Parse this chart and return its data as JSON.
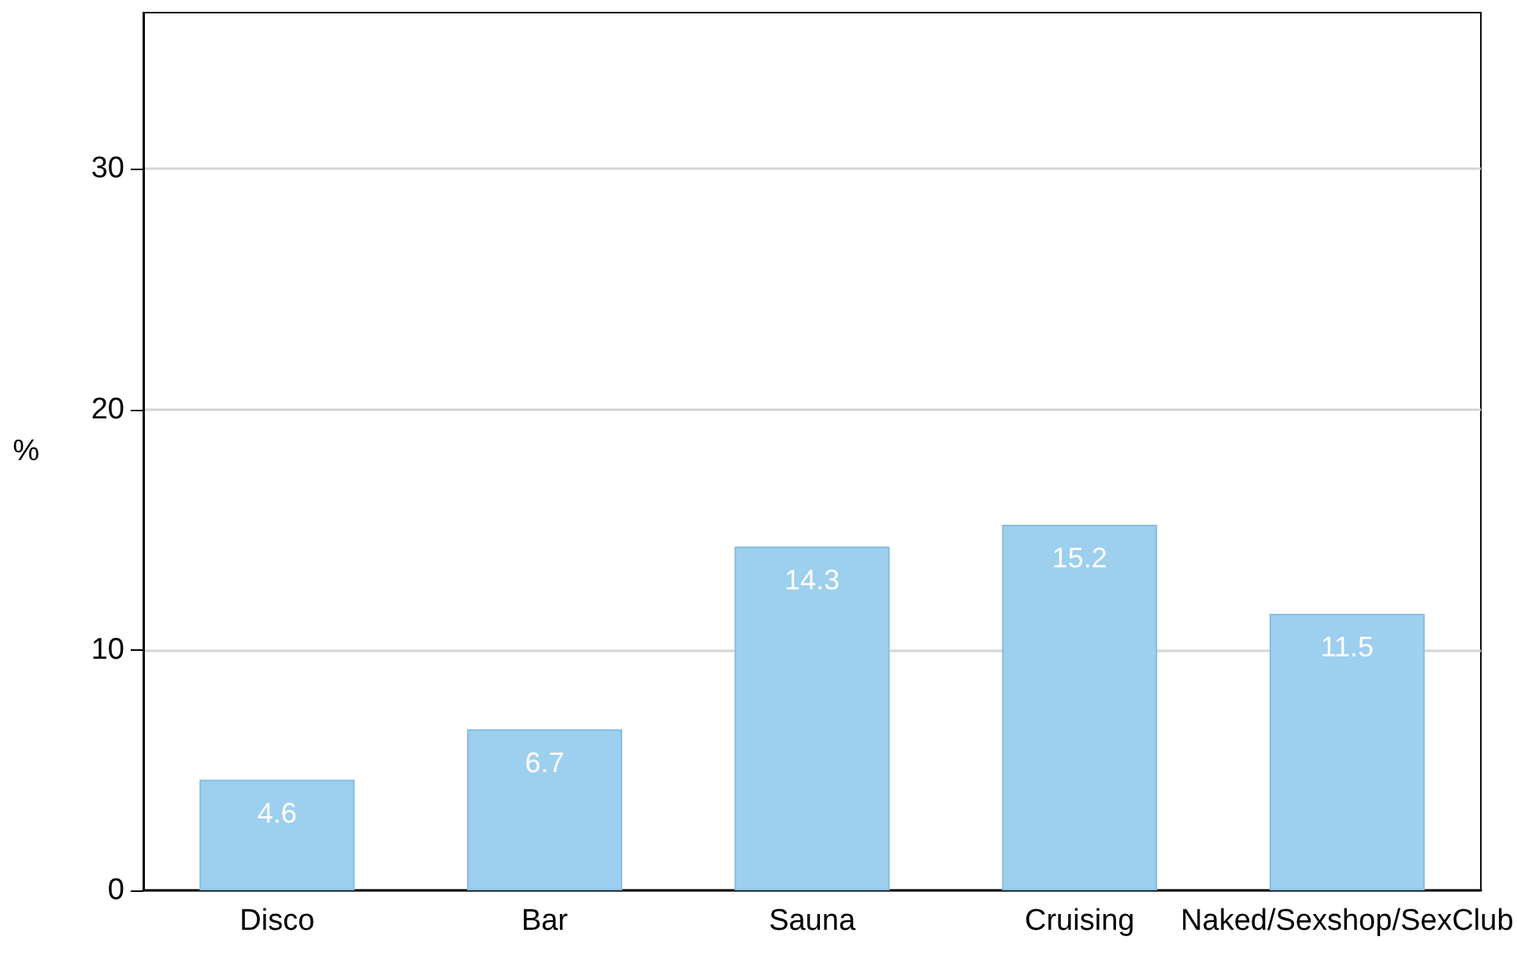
{
  "chart_data": {
    "type": "bar",
    "ylabel": "%",
    "categories": [
      "Disco",
      "Bar",
      "Sauna",
      "Cruising",
      "Naked/Sexshop/SexClub"
    ],
    "values": [
      4.6,
      6.7,
      14.3,
      15.2,
      11.5
    ],
    "color": "#9dcfee",
    "ylim": [
      0,
      36.5
    ],
    "yticks": [
      0,
      10,
      20,
      30
    ],
    "grid": "y",
    "data_labels": true
  }
}
